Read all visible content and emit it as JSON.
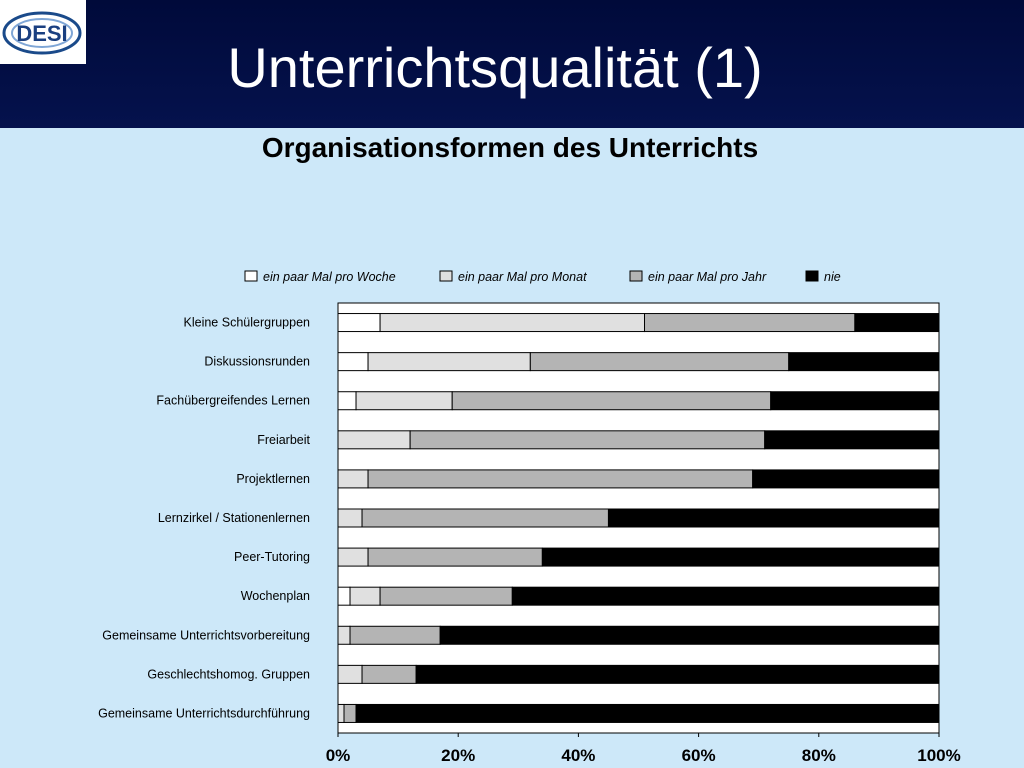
{
  "header": {
    "title": "Unterrichtsqualität (1)",
    "logo_text": "DESI"
  },
  "colors": {
    "header_bg": "#000a3a",
    "page_bg": "#cde8f9",
    "series": [
      "#ffffff",
      "#e0e0e0",
      "#b4b4b4",
      "#000000"
    ]
  },
  "chart_data": {
    "type": "bar",
    "orientation": "horizontal",
    "stacked": "percent",
    "title": "Organisationsformen des Unterrichts",
    "legend_position": "top",
    "xlim": [
      0,
      100
    ],
    "x_ticks": [
      "0%",
      "20%",
      "40%",
      "60%",
      "80%",
      "100%"
    ],
    "categories": [
      "Kleine Schülergruppen",
      "Diskussionsrunden",
      "Fachübergreifendes Lernen",
      "Freiarbeit",
      "Projektlernen",
      "Lernzirkel / Stationenlernen",
      "Peer-Tutoring",
      "Wochenplan",
      "Gemeinsame Unterrichtsvorbereitung",
      "Geschlechtshomog. Gruppen",
      "Gemeinsame Unterrichtsdurchführung"
    ],
    "series": [
      {
        "name": "ein paar Mal pro Woche",
        "values": [
          7,
          5,
          3,
          0,
          0,
          0,
          0,
          2,
          0,
          0,
          0
        ]
      },
      {
        "name": "ein paar Mal pro Monat",
        "values": [
          44,
          27,
          16,
          12,
          5,
          4,
          5,
          5,
          2,
          4,
          1
        ]
      },
      {
        "name": "ein paar Mal pro Jahr",
        "values": [
          35,
          43,
          53,
          59,
          64,
          41,
          29,
          22,
          15,
          9,
          2
        ]
      },
      {
        "name": "nie",
        "values": [
          14,
          25,
          28,
          29,
          31,
          55,
          66,
          71,
          83,
          87,
          97
        ]
      }
    ]
  }
}
